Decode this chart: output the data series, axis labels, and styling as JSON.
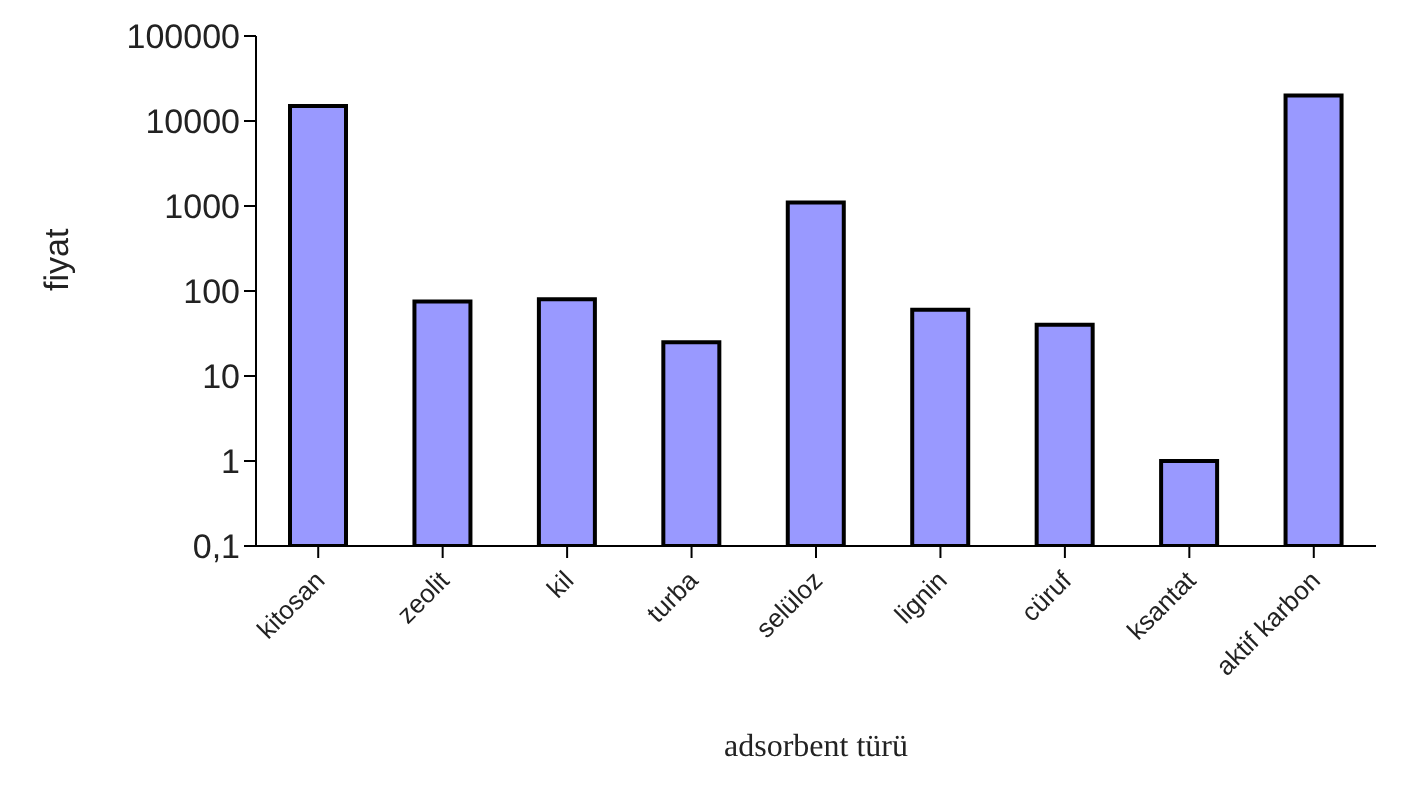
{
  "chart_data": {
    "type": "bar",
    "xlabel": "adsorbent türü",
    "ylabel": "fiyat",
    "categories": [
      "kitosan",
      "zeolit",
      "kil",
      "turba",
      "selüloz",
      "lignin",
      "cüruf",
      "ksantat",
      "aktif karbon"
    ],
    "values": [
      15000,
      75,
      80,
      25,
      1100,
      60,
      40,
      1,
      20000
    ],
    "color": "#9999ff",
    "log": "y",
    "ylim": [
      0.1,
      100000
    ],
    "yticks": [
      {
        "value": 0.1,
        "label": "0,1"
      },
      1,
      10,
      100,
      1000,
      10000,
      100000
    ],
    "grid": false,
    "legend": false
  }
}
